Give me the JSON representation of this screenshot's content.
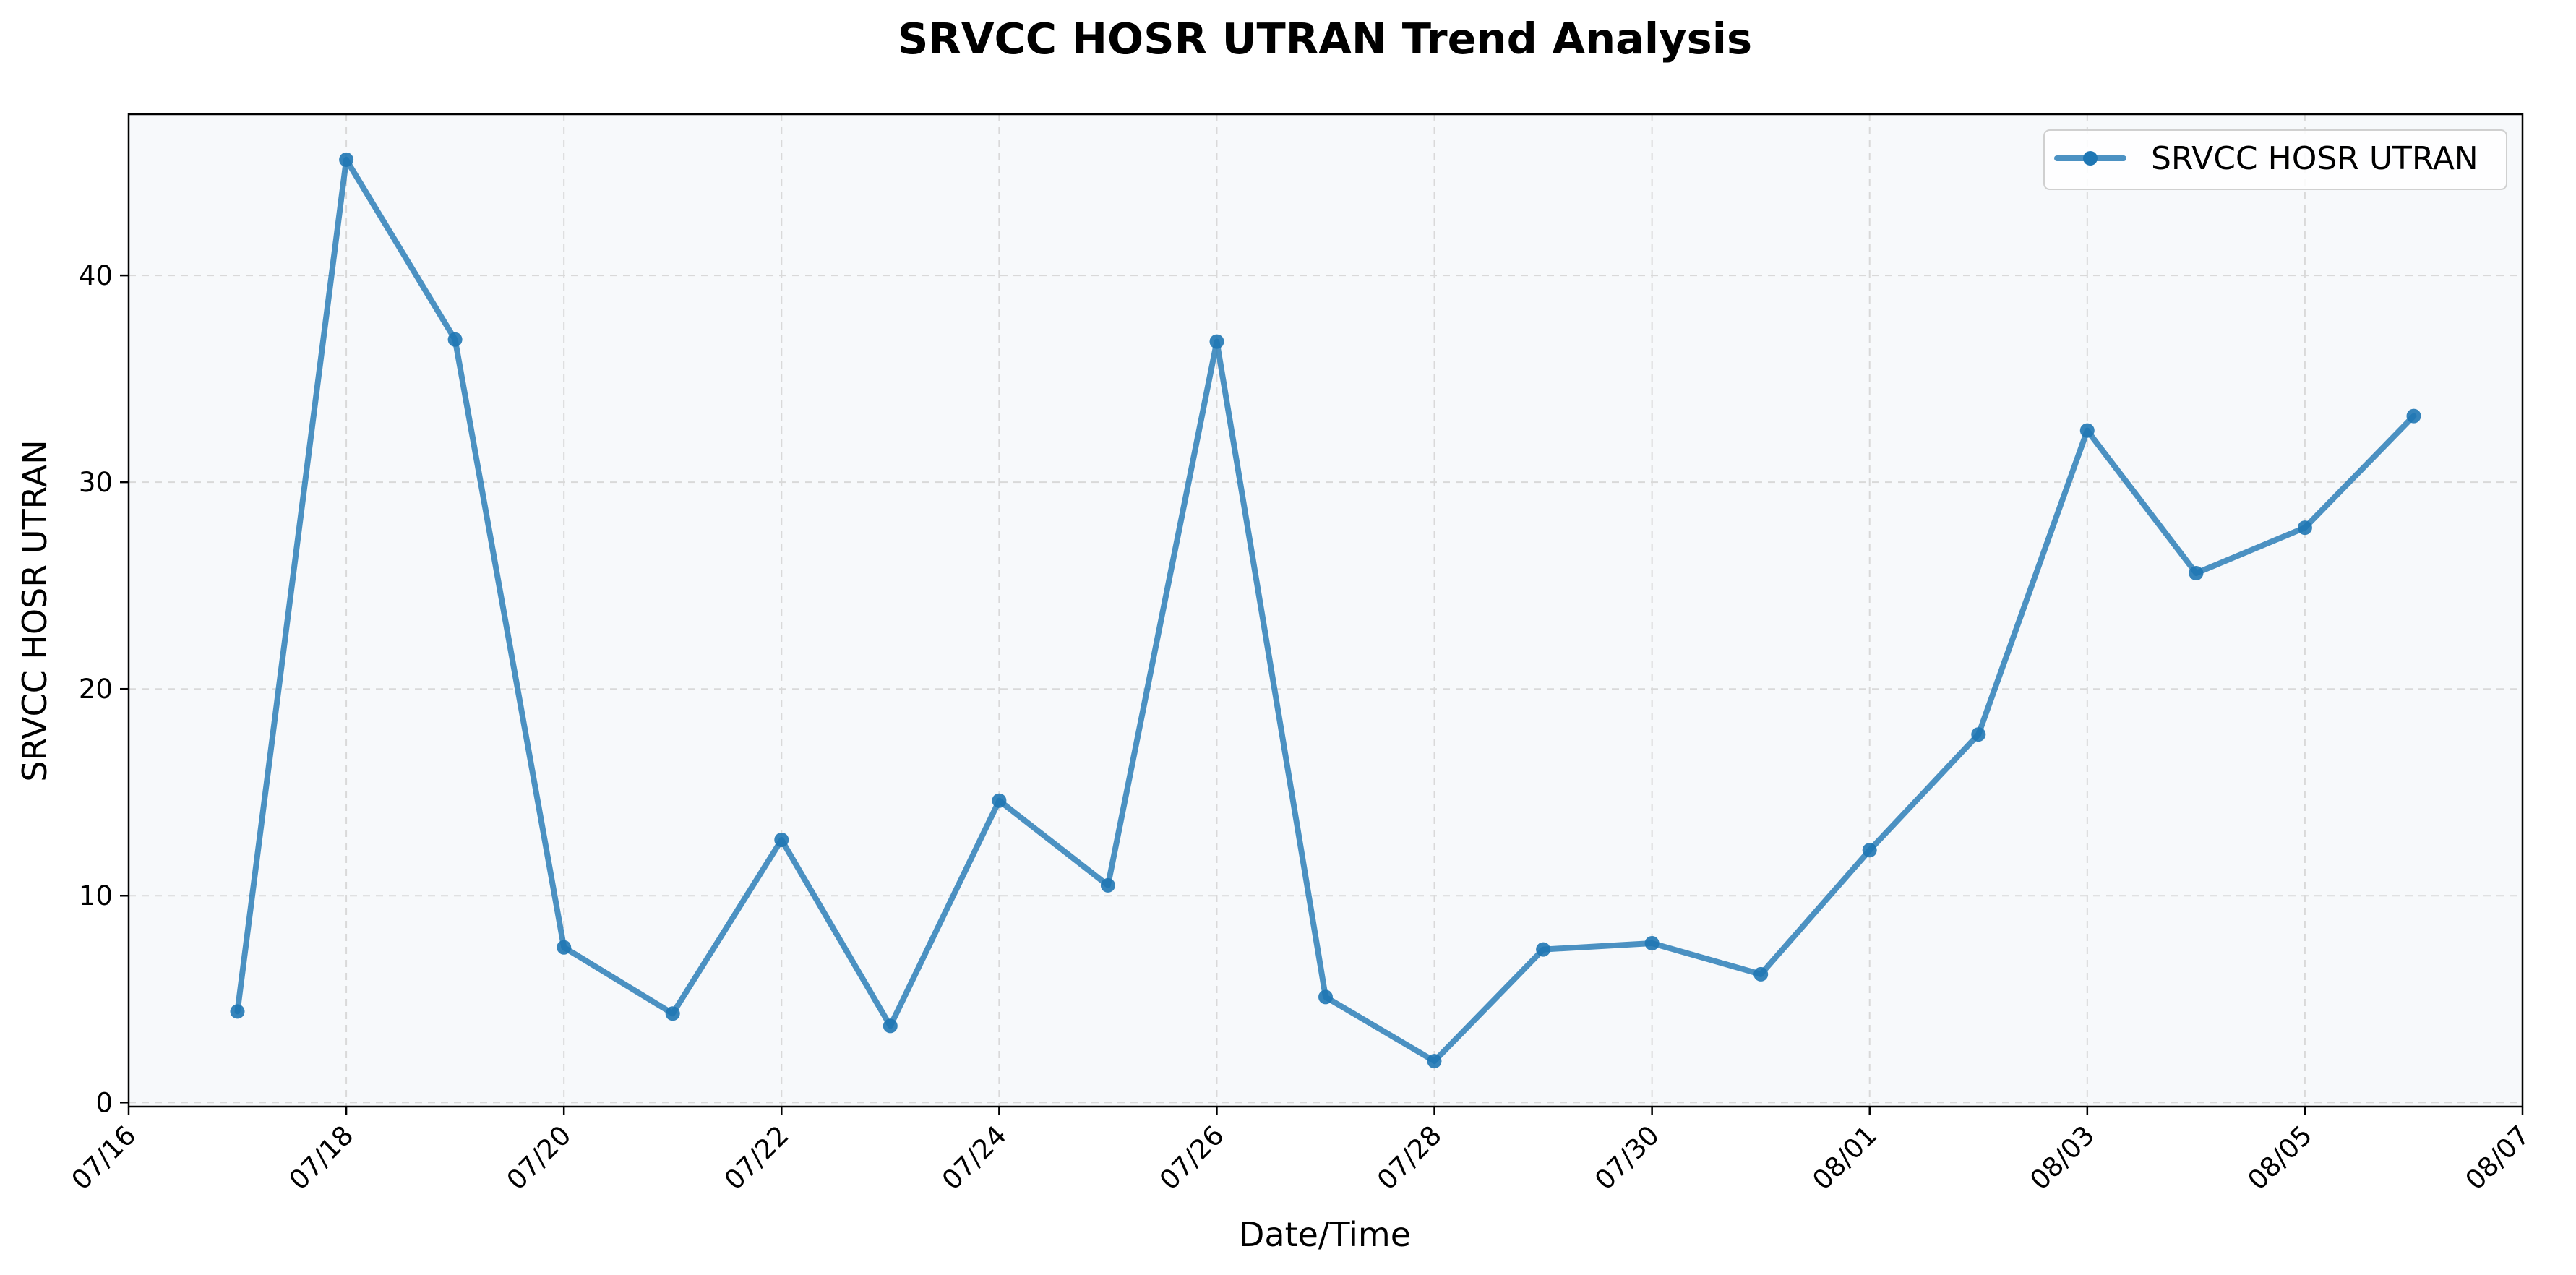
{
  "chart_data": {
    "type": "line",
    "title": "SRVCC HOSR UTRAN Trend Analysis",
    "xlabel": "Date/Time",
    "ylabel": "SRVCC HOSR UTRAN",
    "x_tick_labels": [
      "07/16",
      "07/18",
      "07/20",
      "07/22",
      "07/24",
      "07/26",
      "07/28",
      "07/30",
      "08/01",
      "08/03",
      "08/05",
      "08/07"
    ],
    "y_ticks": [
      0,
      10,
      20,
      30,
      40
    ],
    "ylim": [
      -0.2,
      47.8
    ],
    "xlim": [
      "07/16",
      "08/07"
    ],
    "grid": true,
    "legend": {
      "placement": "top-right",
      "entries": [
        "SRVCC HOSR UTRAN"
      ]
    },
    "series": [
      {
        "name": "SRVCC HOSR UTRAN",
        "color": "#1f77b4",
        "x": [
          "07/17",
          "07/18",
          "07/19",
          "07/20",
          "07/21",
          "07/22",
          "07/23",
          "07/24",
          "07/25",
          "07/26",
          "07/27",
          "07/28",
          "07/29",
          "07/30",
          "07/31",
          "08/01",
          "08/02",
          "08/03",
          "08/04",
          "08/05",
          "08/06"
        ],
        "values": [
          4.4,
          45.6,
          36.9,
          7.5,
          4.3,
          12.7,
          3.7,
          14.6,
          10.5,
          36.8,
          5.1,
          2.0,
          7.4,
          7.7,
          6.2,
          12.2,
          17.8,
          32.5,
          25.6,
          27.8,
          33.2
        ]
      }
    ]
  }
}
